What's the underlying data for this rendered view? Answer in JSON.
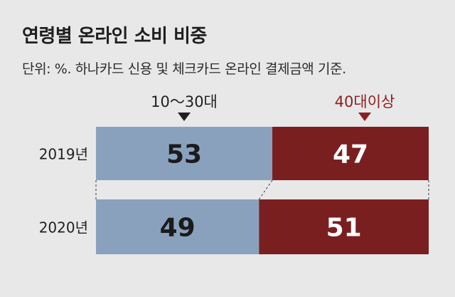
{
  "title": "연령별 온라인 소비 비중",
  "subtitle": "단위: %. 하나카드 신용 및 체크카드 온라인 결제금액 기준.",
  "colors": {
    "young": "#8aa1be",
    "old": "#7a1f1f",
    "oldLabel": "#8c1f1f",
    "background": "#e8e8e9"
  },
  "chart_data": {
    "type": "bar",
    "orientation": "horizontal",
    "stacked": true,
    "percent": true,
    "categories": [
      "2019년",
      "2020년"
    ],
    "series": [
      {
        "name": "10～30대",
        "values": [
          53,
          49
        ]
      },
      {
        "name": "40대이상",
        "values": [
          47,
          51
        ]
      }
    ],
    "xlim": [
      0,
      100
    ],
    "legend": "top-inline-with-arrows"
  }
}
